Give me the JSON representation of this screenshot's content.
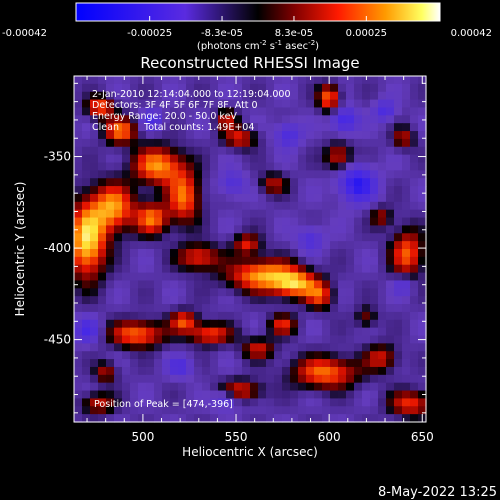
{
  "chart_data": {
    "type": "heatmap",
    "title": "Reconstructed RHESSI Image",
    "xlabel": "Heliocentric X (arcsec)",
    "ylabel": "Heliocentric Y (arcsec)",
    "xlim": [
      463,
      652
    ],
    "ylim": [
      -495,
      -306
    ],
    "x_ticks": [
      500,
      550,
      600,
      650
    ],
    "y_ticks": [
      -450,
      -400,
      -350
    ],
    "colorbar": {
      "range": [
        -0.00042,
        0.00042
      ],
      "tick_values": [
        -0.00042,
        -0.00025,
        -8.3e-05,
        8.3e-05,
        0.00025,
        0.00042
      ],
      "tick_labels": [
        "-0.00042",
        "-0.00025",
        "-8.3e-05",
        "8.3e-05",
        "0.00025",
        "0.00042"
      ],
      "unit_label": "(photons cm",
      "unit_exp1": "-2",
      "unit_mid": " s",
      "unit_exp2": "-1",
      "unit_end": " asec",
      "unit_exp3": "-2",
      "unit_close": ")"
    },
    "annotations": {
      "time_range": "2-Jan-2010 12:14:04.000 to 12:19:04.000",
      "detectors": "Detectors: 3F 4F 5F 6F 7F 8F, Att 0",
      "energy": "Energy Range: 20.0 - 50.0 keV",
      "method": "Clean",
      "counts": "Total counts: 1.49E+04",
      "peak": "Position of Peak = [474,-396]"
    },
    "footer_date": "8-May-2022 13:25",
    "sources": [
      {
        "x": 470,
        "y": -396,
        "sx": 7,
        "sy": 14,
        "a": 1.05
      },
      {
        "x": 484,
        "y": -378,
        "sx": 8,
        "sy": 9,
        "a": 0.85
      },
      {
        "x": 488,
        "y": -336,
        "sx": 6,
        "sy": 5,
        "a": 0.75
      },
      {
        "x": 477,
        "y": -323,
        "sx": 5,
        "sy": 4,
        "a": 0.7
      },
      {
        "x": 505,
        "y": -384,
        "sx": 6,
        "sy": 6,
        "a": 0.75
      },
      {
        "x": 508,
        "y": -355,
        "sx": 9,
        "sy": 7,
        "a": 0.85
      },
      {
        "x": 522,
        "y": -372,
        "sx": 6,
        "sy": 10,
        "a": 0.75
      },
      {
        "x": 530,
        "y": -405,
        "sx": 8,
        "sy": 5,
        "a": 0.6
      },
      {
        "x": 552,
        "y": -340,
        "sx": 6,
        "sy": 4,
        "a": 0.55
      },
      {
        "x": 545,
        "y": -330,
        "sx": 4,
        "sy": 4,
        "a": 0.45
      },
      {
        "x": 565,
        "y": -415,
        "sx": 13,
        "sy": 6,
        "a": 0.9
      },
      {
        "x": 582,
        "y": -420,
        "sx": 8,
        "sy": 5,
        "a": 0.8
      },
      {
        "x": 595,
        "y": -426,
        "sx": 5,
        "sy": 5,
        "a": 0.6
      },
      {
        "x": 556,
        "y": -398,
        "sx": 5,
        "sy": 4,
        "a": 0.55
      },
      {
        "x": 600,
        "y": -318,
        "sx": 4,
        "sy": 5,
        "a": 0.75
      },
      {
        "x": 605,
        "y": -350,
        "sx": 5,
        "sy": 5,
        "a": 0.55
      },
      {
        "x": 640,
        "y": -340,
        "sx": 4,
        "sy": 4,
        "a": 0.45
      },
      {
        "x": 642,
        "y": -403,
        "sx": 6,
        "sy": 9,
        "a": 0.7
      },
      {
        "x": 628,
        "y": -383,
        "sx": 4,
        "sy": 4,
        "a": 0.4
      },
      {
        "x": 497,
        "y": -447,
        "sx": 10,
        "sy": 5,
        "a": 0.75
      },
      {
        "x": 522,
        "y": -440,
        "sx": 5,
        "sy": 4,
        "a": 0.65
      },
      {
        "x": 536,
        "y": -447,
        "sx": 8,
        "sy": 4,
        "a": 0.65
      },
      {
        "x": 562,
        "y": -455,
        "sx": 6,
        "sy": 4,
        "a": 0.5
      },
      {
        "x": 575,
        "y": -442,
        "sx": 5,
        "sy": 4,
        "a": 0.55
      },
      {
        "x": 552,
        "y": -478,
        "sx": 8,
        "sy": 4,
        "a": 0.6
      },
      {
        "x": 598,
        "y": -468,
        "sx": 12,
        "sy": 6,
        "a": 0.75
      },
      {
        "x": 628,
        "y": -460,
        "sx": 6,
        "sy": 5,
        "a": 0.5
      },
      {
        "x": 644,
        "y": -485,
        "sx": 8,
        "sy": 5,
        "a": 0.6
      },
      {
        "x": 480,
        "y": -468,
        "sx": 4,
        "sy": 4,
        "a": 0.45
      },
      {
        "x": 476,
        "y": -485,
        "sx": 6,
        "sy": 4,
        "a": 0.5
      },
      {
        "x": 620,
        "y": -438,
        "sx": 4,
        "sy": 4,
        "a": 0.35
      },
      {
        "x": 570,
        "y": -365,
        "sx": 5,
        "sy": 4,
        "a": 0.45
      },
      {
        "x": 615,
        "y": -365,
        "sx": 7,
        "sy": 7,
        "a": -0.55
      },
      {
        "x": 608,
        "y": -330,
        "sx": 5,
        "sy": 5,
        "a": -0.45
      },
      {
        "x": 545,
        "y": -482,
        "sx": 5,
        "sy": 4,
        "a": -0.45
      },
      {
        "x": 505,
        "y": -330,
        "sx": 4,
        "sy": 4,
        "a": -0.35
      },
      {
        "x": 578,
        "y": -338,
        "sx": 5,
        "sy": 5,
        "a": -0.35
      },
      {
        "x": 640,
        "y": -420,
        "sx": 4,
        "sy": 4,
        "a": -0.3
      },
      {
        "x": 470,
        "y": -445,
        "sx": 5,
        "sy": 5,
        "a": -0.35
      },
      {
        "x": 520,
        "y": -465,
        "sx": 5,
        "sy": 4,
        "a": -0.3
      },
      {
        "x": 590,
        "y": -395,
        "sx": 5,
        "sy": 5,
        "a": -0.3
      },
      {
        "x": 548,
        "y": -365,
        "sx": 5,
        "sy": 5,
        "a": -0.3
      },
      {
        "x": 630,
        "y": -325,
        "sx": 4,
        "sy": 4,
        "a": -0.35
      }
    ]
  }
}
